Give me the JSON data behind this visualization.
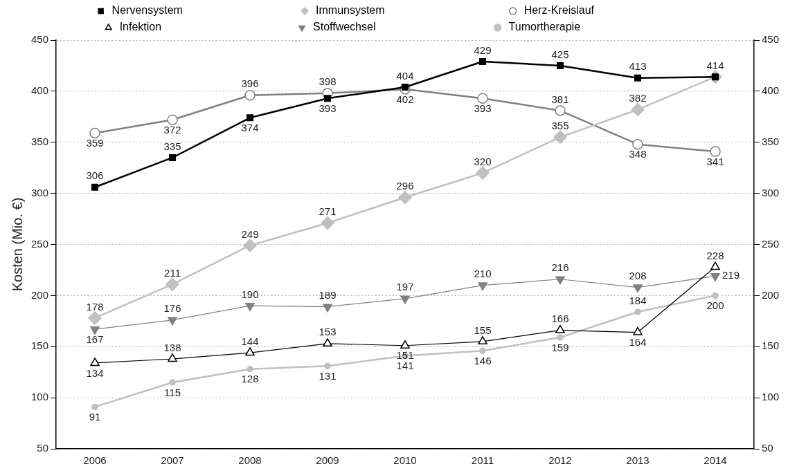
{
  "chart_data": {
    "type": "line",
    "ylabel": "Kosten (Mio. €)",
    "categories": [
      "2006",
      "2007",
      "2008",
      "2009",
      "2010",
      "2011",
      "2012",
      "2013",
      "2014"
    ],
    "series": [
      {
        "name": "Nervensystem",
        "color": "#000000",
        "marker": "square",
        "values": [
          306,
          335,
          374,
          393,
          404,
          429,
          425,
          413,
          414
        ]
      },
      {
        "name": "Immunsystem",
        "color": "#c0c0c0",
        "marker": "diamond",
        "values": [
          178,
          211,
          249,
          271,
          296,
          320,
          355,
          382,
          414
        ],
        "value_labels": [
          "178",
          "211",
          "249",
          "271",
          "296",
          "320",
          "355",
          "382",
          null
        ]
      },
      {
        "name": "Herz-Kreislauf",
        "color": "#808080",
        "marker": "circle",
        "values": [
          359,
          372,
          396,
          398,
          402,
          393,
          381,
          348,
          341
        ]
      },
      {
        "name": "Infektion",
        "color": "#000000",
        "marker": "triangle",
        "values": [
          134,
          138,
          144,
          153,
          151,
          155,
          166,
          164,
          228
        ]
      },
      {
        "name": "Stoffwechsel",
        "color": "#808080",
        "marker": "triangle",
        "values": [
          167,
          176,
          190,
          189,
          197,
          210,
          216,
          208,
          219
        ]
      },
      {
        "name": "Tumortherapie",
        "color": "#c0c0c0",
        "marker": "circle",
        "values": [
          91,
          115,
          128,
          131,
          141,
          146,
          159,
          184,
          200
        ]
      }
    ],
    "ylim": [
      50,
      450
    ],
    "yticks": [
      50,
      100,
      150,
      200,
      250,
      300,
      350,
      400,
      450
    ],
    "y2lim": [
      50,
      450
    ],
    "y2ticks": [
      50,
      100,
      150,
      200,
      250,
      300,
      350,
      400,
      450
    ],
    "grid": "y",
    "legend": "top",
    "data_labels": true,
    "line_style": "solid"
  }
}
